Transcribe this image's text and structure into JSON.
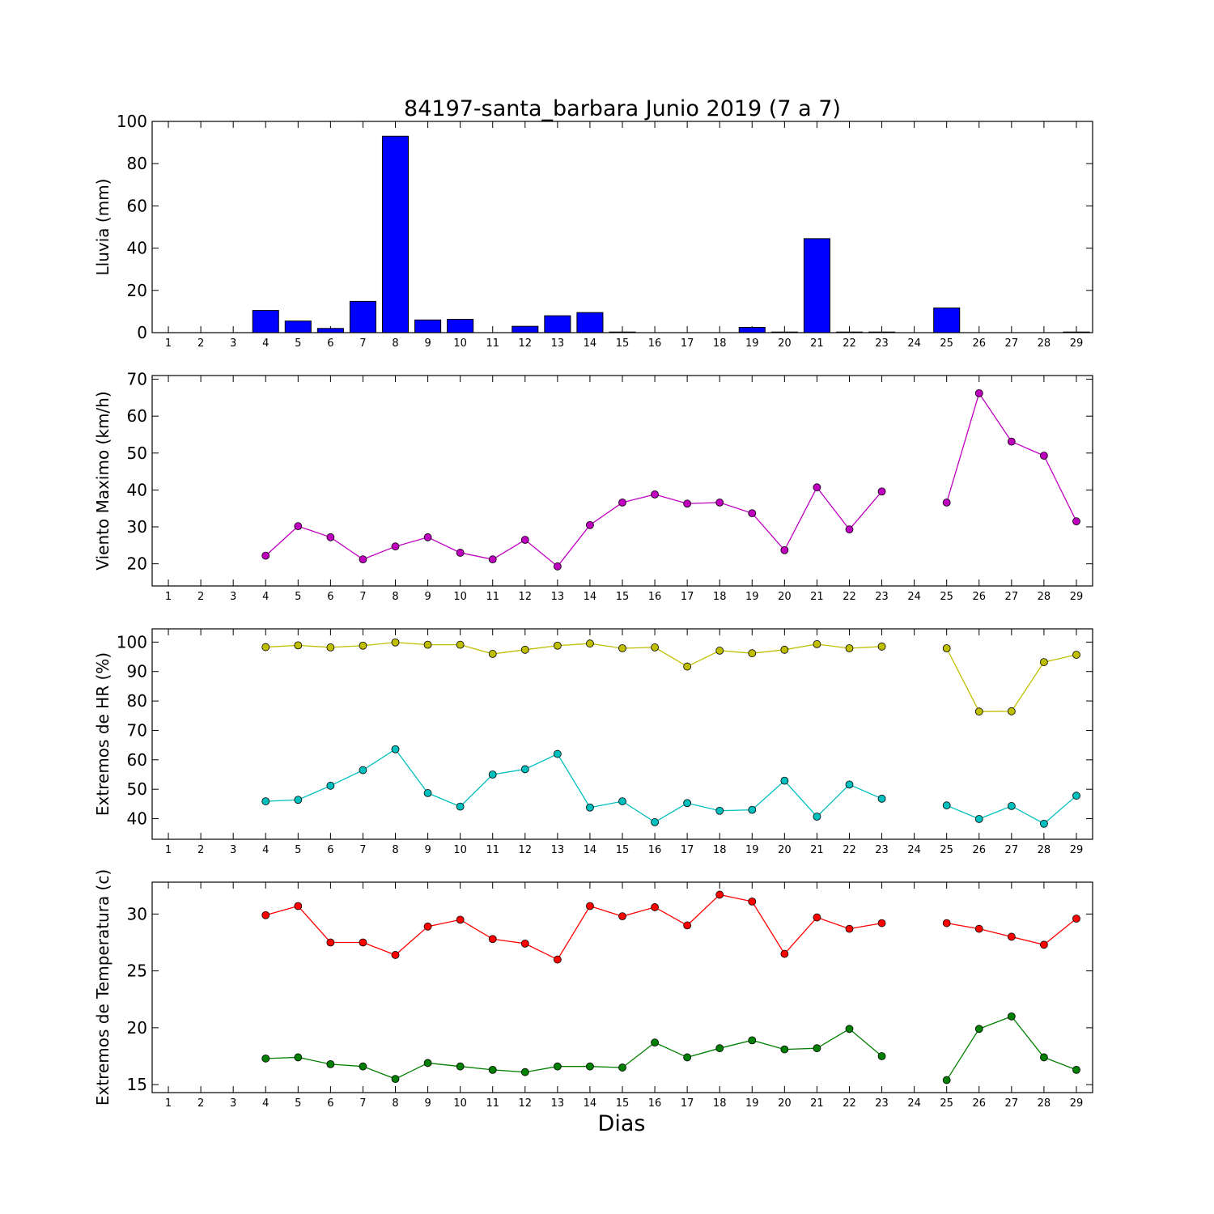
{
  "figure": {
    "title": "84197-santa_barbara Junio 2019  (7 a 7)",
    "xlabel": "Dias"
  },
  "chart_data": [
    {
      "type": "bar",
      "id": "lluvia",
      "ylabel": "Lluvia (mm)",
      "ylim": [
        0,
        100
      ],
      "yticks": [
        0,
        20,
        40,
        60,
        80,
        100
      ],
      "categories": [
        1,
        2,
        3,
        4,
        5,
        6,
        7,
        8,
        9,
        10,
        11,
        12,
        13,
        14,
        15,
        16,
        17,
        18,
        19,
        20,
        21,
        22,
        23,
        24,
        25,
        26,
        27,
        28,
        29
      ],
      "values": [
        0,
        0,
        0,
        10.5,
        5.5,
        2,
        14.8,
        93,
        6,
        6.3,
        0,
        3,
        8,
        9.5,
        0.3,
        0,
        0,
        0,
        2.5,
        0.3,
        44.5,
        0.3,
        0.3,
        0,
        11.7,
        0,
        0,
        0,
        0.3
      ],
      "color": "#0000ff",
      "grid": false
    },
    {
      "type": "line",
      "id": "viento",
      "ylabel": "Viento Maximo (km/h)",
      "ylim": [
        14,
        71
      ],
      "yticks": [
        20,
        30,
        40,
        50,
        60,
        70
      ],
      "x": [
        1,
        2,
        3,
        4,
        5,
        6,
        7,
        8,
        9,
        10,
        11,
        12,
        13,
        14,
        15,
        16,
        17,
        18,
        19,
        20,
        21,
        22,
        23,
        24,
        25,
        26,
        27,
        28,
        29
      ],
      "series": [
        {
          "color": "#bf00bf",
          "values": [
            null,
            null,
            null,
            22.2,
            30.2,
            27.2,
            21.2,
            24.7,
            27.2,
            23.0,
            21.2,
            26.5,
            19.3,
            30.5,
            36.6,
            38.8,
            36.3,
            36.6,
            33.7,
            23.7,
            40.7,
            29.3,
            39.6,
            null,
            36.6,
            66.2,
            53.1,
            49.3,
            31.5
          ]
        }
      ],
      "grid": false
    },
    {
      "type": "line",
      "id": "humedad",
      "ylabel": "Extremos de HR (%)",
      "ylim": [
        33,
        104.5
      ],
      "yticks": [
        40,
        50,
        60,
        70,
        80,
        90,
        100
      ],
      "x": [
        1,
        2,
        3,
        4,
        5,
        6,
        7,
        8,
        9,
        10,
        11,
        12,
        13,
        14,
        15,
        16,
        17,
        18,
        19,
        20,
        21,
        22,
        23,
        24,
        25,
        26,
        27,
        28,
        29
      ],
      "series": [
        {
          "color": "#bfbf00",
          "values": [
            null,
            null,
            null,
            98.3,
            98.9,
            98.2,
            98.8,
            99.9,
            99.1,
            99.1,
            96.0,
            97.4,
            98.8,
            99.5,
            97.9,
            98.2,
            91.7,
            97.1,
            96.2,
            97.4,
            99.3,
            97.9,
            98.5,
            null,
            97.9,
            76.4,
            76.5,
            93.2,
            95.7
          ]
        },
        {
          "color": "#00bfbf",
          "values": [
            null,
            null,
            null,
            45.9,
            46.4,
            51.2,
            56.5,
            63.6,
            48.7,
            44.1,
            55.0,
            56.8,
            62.0,
            43.8,
            45.9,
            38.8,
            45.3,
            42.7,
            43.0,
            52.9,
            40.7,
            51.6,
            46.8,
            null,
            44.5,
            39.9,
            44.3,
            38.3,
            47.8
          ]
        }
      ],
      "grid": false
    },
    {
      "type": "line",
      "id": "temperatura",
      "ylabel": "Extremos de Temperatura (c)",
      "ylim": [
        14.3,
        32.8
      ],
      "yticks": [
        15,
        20,
        25,
        30
      ],
      "x": [
        1,
        2,
        3,
        4,
        5,
        6,
        7,
        8,
        9,
        10,
        11,
        12,
        13,
        14,
        15,
        16,
        17,
        18,
        19,
        20,
        21,
        22,
        23,
        24,
        25,
        26,
        27,
        28,
        29
      ],
      "series": [
        {
          "color": "#ff0000",
          "values": [
            null,
            null,
            null,
            29.9,
            30.7,
            27.5,
            27.5,
            26.4,
            28.9,
            29.5,
            27.8,
            27.4,
            26.0,
            30.7,
            29.8,
            30.6,
            29.0,
            31.7,
            31.1,
            26.5,
            29.7,
            28.7,
            29.2,
            null,
            29.2,
            28.7,
            28.0,
            27.3,
            29.6
          ]
        },
        {
          "color": "#008000",
          "values": [
            null,
            null,
            null,
            17.3,
            17.4,
            16.8,
            16.6,
            15.5,
            16.9,
            16.6,
            16.3,
            16.1,
            16.6,
            16.6,
            16.5,
            18.7,
            17.4,
            18.2,
            18.9,
            18.1,
            18.2,
            19.9,
            17.5,
            null,
            15.4,
            19.9,
            21.0,
            17.4,
            16.3
          ]
        }
      ],
      "grid": false
    }
  ]
}
